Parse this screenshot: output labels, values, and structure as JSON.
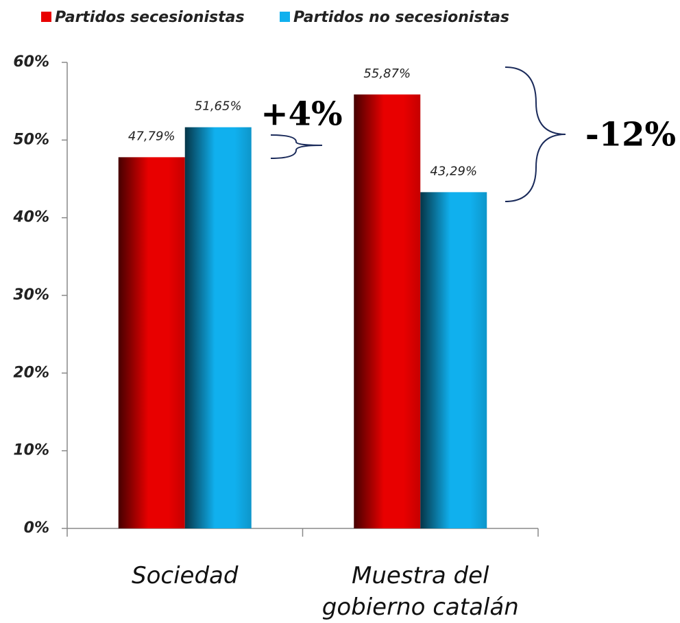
{
  "chart_data": {
    "type": "bar",
    "categories": [
      "Sociedad",
      "Muestra del gobierno catalán"
    ],
    "series": [
      {
        "name": "Partidos secesionistas",
        "color": "#e80000",
        "values": [
          47.79,
          55.87
        ],
        "value_labels": [
          "47,79%",
          "55,87%"
        ]
      },
      {
        "name": "Partidos no secesionistas",
        "color": "#10b0ee",
        "values": [
          51.65,
          43.29
        ],
        "value_labels": [
          "51,65%",
          "43,29%"
        ]
      }
    ],
    "ylim": [
      0,
      60
    ],
    "yticks": [
      {
        "value": 0,
        "label": "0%"
      },
      {
        "value": 10,
        "label": "10%"
      },
      {
        "value": 20,
        "label": "20%"
      },
      {
        "value": 30,
        "label": "30%"
      },
      {
        "value": 40,
        "label": "40%"
      },
      {
        "value": 50,
        "label": "50%"
      },
      {
        "value": 60,
        "label": "60%"
      }
    ],
    "annotations": [
      "+4%",
      "-12%"
    ]
  }
}
